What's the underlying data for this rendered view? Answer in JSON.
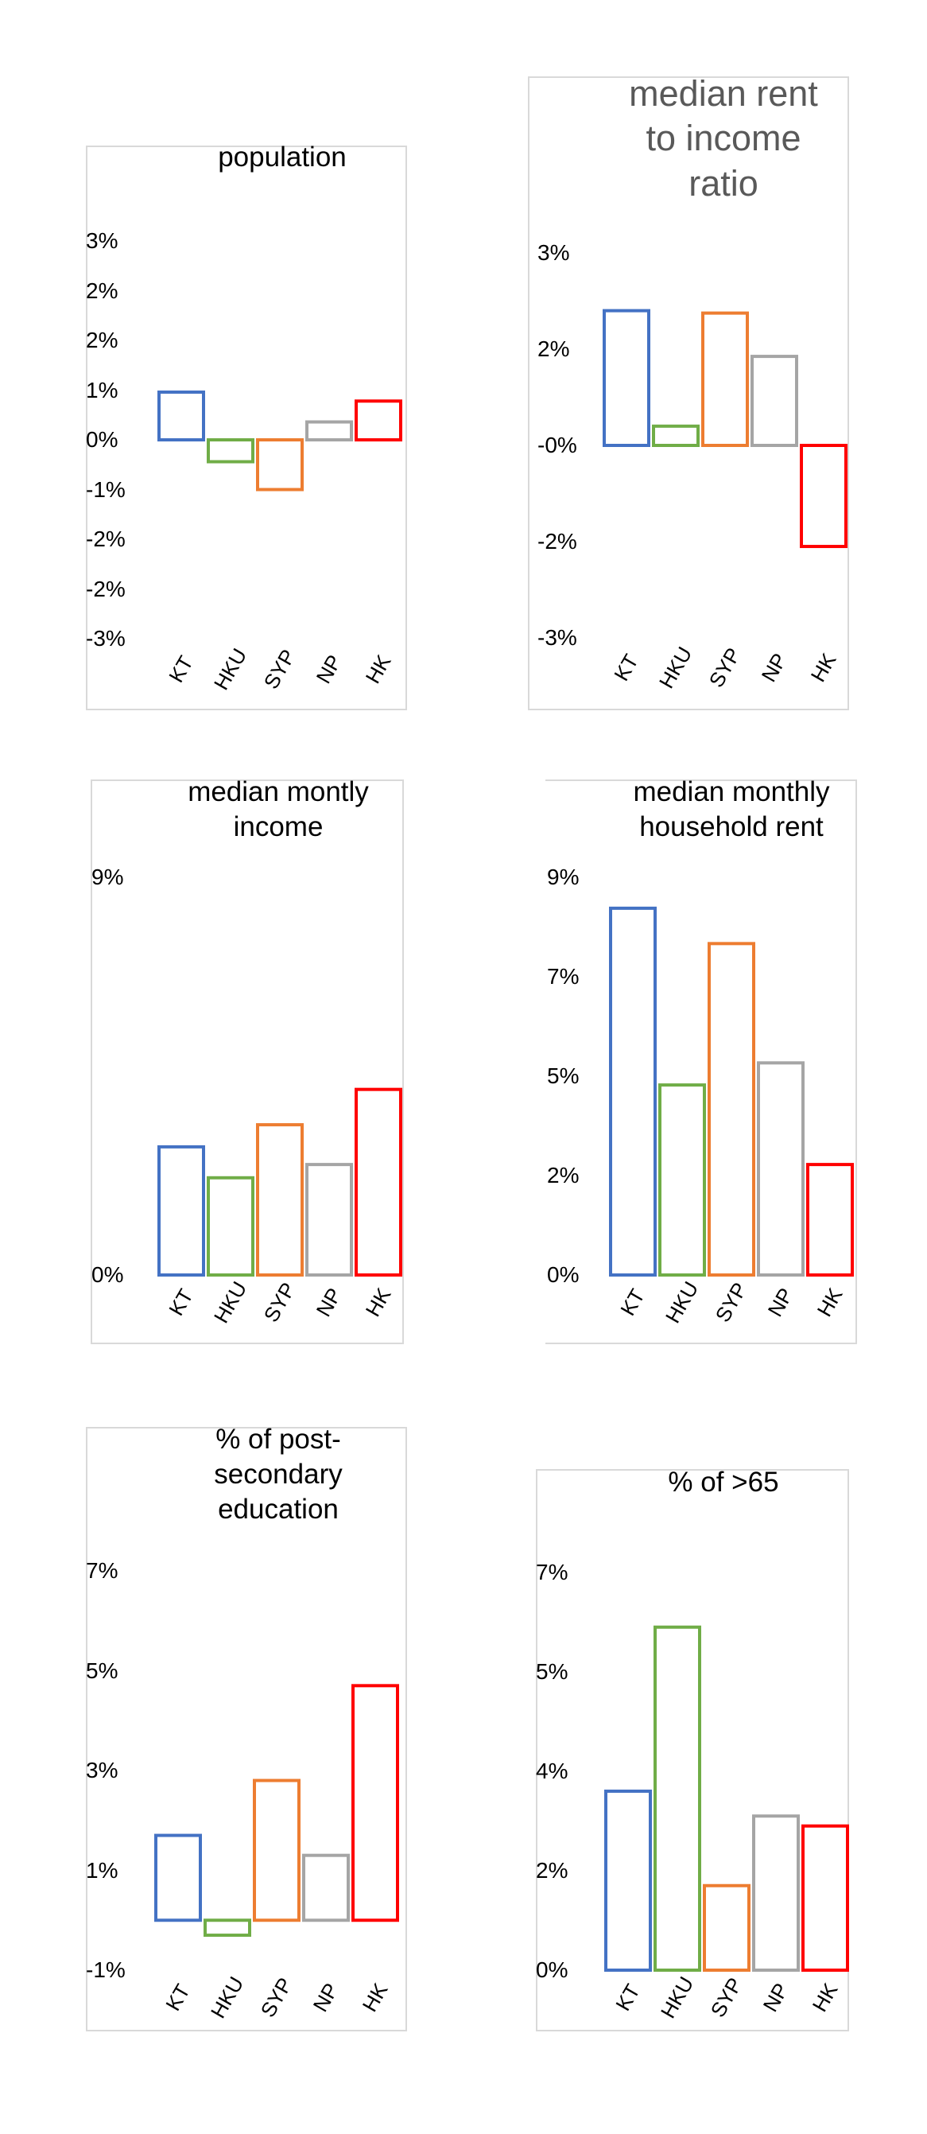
{
  "chart_data": [
    {
      "type": "bar",
      "title": "population",
      "categories": [
        "KT",
        "HKU",
        "SYP",
        "NP",
        "HK"
      ],
      "values": [
        0.96,
        -0.44,
        -1.0,
        0.36,
        0.78
      ],
      "yticks": [
        "3%",
        "2%",
        "2%",
        "1%",
        "0%",
        "-1%",
        "-2%",
        "-2%",
        "-3%"
      ],
      "ylim": [
        -4,
        4
      ],
      "colors": [
        "#4472c4",
        "#70ad47",
        "#ed7d31",
        "#a5a5a5",
        "#ff0000"
      ],
      "grid": false,
      "legend": "none"
    },
    {
      "type": "bar",
      "title": "median rent to income ratio",
      "categories": [
        "KT",
        "HKU",
        "SYP",
        "NP",
        "HK"
      ],
      "values": [
        2.8,
        0.4,
        2.75,
        1.85,
        -2.1
      ],
      "yticks": [
        "3%",
        "2%",
        "-0%",
        "-2%",
        "-3%"
      ],
      "ylim": [
        -4,
        4
      ],
      "colors": [
        "#4472c4",
        "#70ad47",
        "#ed7d31",
        "#a5a5a5",
        "#ff0000"
      ],
      "grid": false,
      "legend": "none"
    },
    {
      "type": "bar",
      "title": "median montly income",
      "categories": [
        "KT",
        "HKU",
        "SYP",
        "NP",
        "HK"
      ],
      "values": [
        2.9,
        2.2,
        3.4,
        2.5,
        4.2
      ],
      "yticks": [
        "9%",
        "0%"
      ],
      "ylim": [
        0,
        9
      ],
      "colors": [
        "#4472c4",
        "#70ad47",
        "#ed7d31",
        "#a5a5a5",
        "#ff0000"
      ],
      "grid": false,
      "legend": "none"
    },
    {
      "type": "bar",
      "title": "median monthly household rent",
      "categories": [
        "KT",
        "HKU",
        "SYP",
        "NP",
        "HK"
      ],
      "values": [
        8.3,
        4.3,
        7.5,
        4.8,
        2.5
      ],
      "yticks": [
        "9%",
        "7%",
        "5%",
        "2%",
        "0%"
      ],
      "ylim": [
        0,
        9
      ],
      "colors": [
        "#4472c4",
        "#70ad47",
        "#ed7d31",
        "#a5a5a5",
        "#ff0000"
      ],
      "grid": false,
      "legend": "none"
    },
    {
      "type": "bar",
      "title": "% of post-secondary education",
      "categories": [
        "KT",
        "HKU",
        "SYP",
        "NP",
        "HK"
      ],
      "values": [
        1.7,
        -0.3,
        2.8,
        1.3,
        4.7
      ],
      "yticks": [
        "7%",
        "5%",
        "3%",
        "1%",
        "-1%"
      ],
      "ylim": [
        -1,
        7
      ],
      "colors": [
        "#4472c4",
        "#70ad47",
        "#ed7d31",
        "#a5a5a5",
        "#ff0000"
      ],
      "grid": false,
      "legend": "none"
    },
    {
      "type": "bar",
      "title": "% of >65",
      "categories": [
        "KT",
        "HKU",
        "SYP",
        "NP",
        "HK"
      ],
      "values": [
        3.6,
        6.9,
        1.7,
        3.1,
        2.9
      ],
      "yticks": [
        "7%",
        "5%",
        "4%",
        "2%",
        "0%"
      ],
      "ylim": [
        0,
        8
      ],
      "colors": [
        "#4472c4",
        "#70ad47",
        "#ed7d31",
        "#a5a5a5",
        "#ff0000"
      ],
      "grid": false,
      "legend": "none"
    }
  ]
}
